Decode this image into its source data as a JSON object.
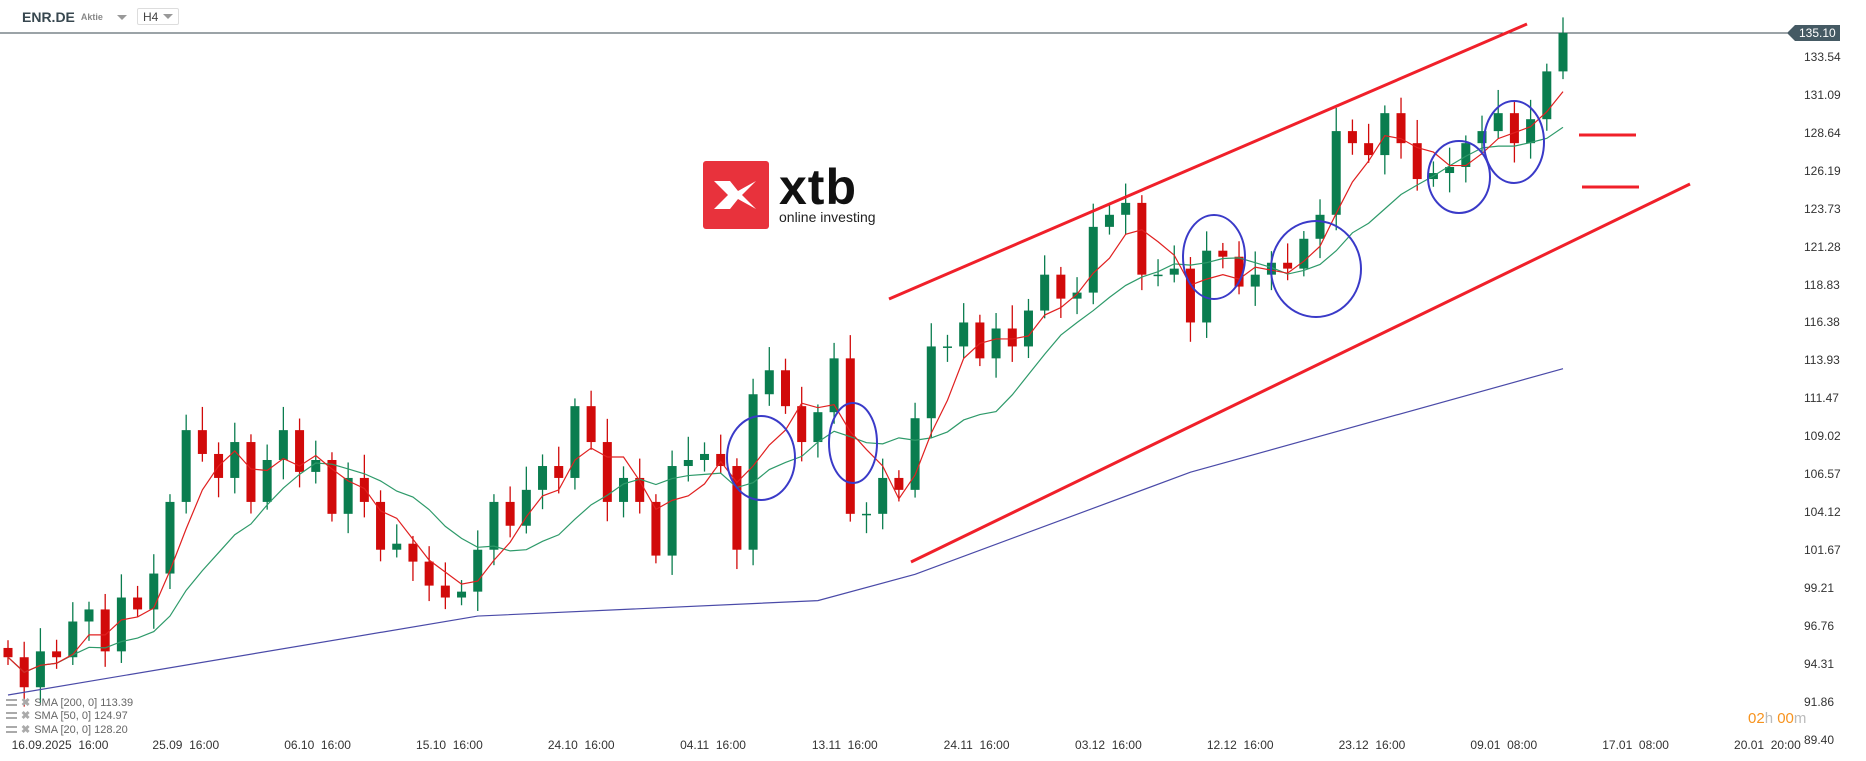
{
  "header": {
    "symbol": "ENR.DE",
    "type": "Aktie",
    "timeframe": "H4"
  },
  "logo": {
    "brand": "xtb",
    "tagline": "online investing"
  },
  "countdown": {
    "hours": "02",
    "h": "h",
    "minutes": "00",
    "m": "m"
  },
  "legend": [
    {
      "label": "SMA [200, 0] 113.39",
      "color": "#4a4aa8"
    },
    {
      "label": "SMA [50, 0] 124.97",
      "color": "#2e9a6a"
    },
    {
      "label": "SMA [20, 0] 128.20",
      "color": "#e02020"
    }
  ],
  "colors": {
    "up": "#0a7d4f",
    "down": "#d10a0a",
    "trend": "#f0202a",
    "circle": "#3a3ac8",
    "price_tag": "#455a64"
  },
  "chart_data": {
    "type": "candlestick",
    "current_price": "135.10",
    "y_ticks": [
      "133.54",
      "131.09",
      "128.64",
      "126.19",
      "123.73",
      "121.28",
      "118.83",
      "116.38",
      "113.93",
      "111.47",
      "109.02",
      "106.57",
      "104.12",
      "101.67",
      "99.21",
      "96.76",
      "94.31",
      "91.86",
      "89.40"
    ],
    "ylim": [
      88.9,
      135.6
    ],
    "x_ticks": [
      "16.09.2025  16:00",
      "25.09  16:00",
      "06.10  16:00",
      "15.10  16:00",
      "24.10  16:00",
      "04.11  16:00",
      "13.11  16:00",
      "24.11  16:00",
      "03.12  16:00",
      "12.12  16:00",
      "23.12  16:00",
      "09.01  08:00",
      "17.01  08:00",
      "20.01  20:00"
    ],
    "closes": [
      94.74,
      92.8,
      95.12,
      94.74,
      97.05,
      97.83,
      95.12,
      98.6,
      97.83,
      100.15,
      104.78,
      109.42,
      107.88,
      106.33,
      108.65,
      104.78,
      107.49,
      109.42,
      106.72,
      107.49,
      104.01,
      106.33,
      104.78,
      101.69,
      102.08,
      100.92,
      99.37,
      98.6,
      98.98,
      101.69,
      104.78,
      103.24,
      105.56,
      107.1,
      106.33,
      110.97,
      108.65,
      104.78,
      106.33,
      104.78,
      101.31,
      107.1,
      107.49,
      107.88,
      107.1,
      101.69,
      111.74,
      113.29,
      110.97,
      108.65,
      110.58,
      114.06,
      104.01,
      104.01,
      106.33,
      105.56,
      110.19,
      114.83,
      114.83,
      116.38,
      114.06,
      115.99,
      114.83,
      117.15,
      119.47,
      117.92,
      118.31,
      122.56,
      123.34,
      124.11,
      119.47,
      119.47,
      119.86,
      116.38,
      121.02,
      120.63,
      118.7,
      119.47,
      120.24,
      119.86,
      121.79,
      123.34,
      128.75,
      127.97,
      127.2,
      129.91,
      127.97,
      125.65,
      126.04,
      126.43,
      127.97,
      128.75,
      129.91,
      127.97,
      129.52,
      132.61,
      135.1
    ],
    "sma200": [
      [
        0,
        92.3
      ],
      [
        29,
        97.4
      ],
      [
        50,
        98.4
      ],
      [
        56,
        100.1
      ],
      [
        73,
        106.7
      ],
      [
        96,
        113.39
      ]
    ]
  }
}
